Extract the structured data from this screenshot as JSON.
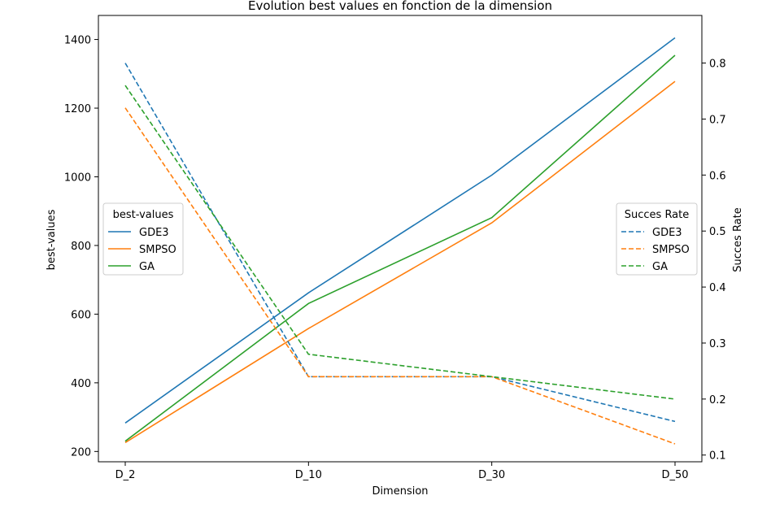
{
  "chart_data": {
    "type": "line",
    "title": "Évolution best values en fonction de la dimension",
    "xlabel": "Dimension",
    "ylabel": "best-values",
    "y2label": "Succes Rate",
    "categories": [
      "D_2",
      "D_10",
      "D_30",
      "D_50"
    ],
    "ylim": [
      170,
      1470
    ],
    "y_ticks": [
      200,
      400,
      600,
      800,
      1000,
      1200,
      1400
    ],
    "y2lim": [
      0.088,
      0.885
    ],
    "y2_ticks": [
      0.1,
      0.2,
      0.3,
      0.4,
      0.5,
      0.6,
      0.7,
      0.8
    ],
    "grid": false,
    "series": [
      {
        "name": "GDE3",
        "axis": "left",
        "style": "solid",
        "color": "#1f77b4",
        "values": [
          283,
          662,
          1005,
          1405
        ]
      },
      {
        "name": "SMPSO",
        "axis": "left",
        "style": "solid",
        "color": "#ff7f0e",
        "values": [
          226,
          558,
          866,
          1278
        ]
      },
      {
        "name": "GA",
        "axis": "left",
        "style": "solid",
        "color": "#2ca02c",
        "values": [
          230,
          631,
          881,
          1354
        ]
      },
      {
        "name": "GDE3",
        "axis": "right",
        "style": "dashed",
        "color": "#1f77b4",
        "values": [
          0.8,
          0.24,
          0.24,
          0.16
        ]
      },
      {
        "name": "SMPSO",
        "axis": "right",
        "style": "dashed",
        "color": "#ff7f0e",
        "values": [
          0.72,
          0.24,
          0.24,
          0.12
        ]
      },
      {
        "name": "GA",
        "axis": "right",
        "style": "dashed",
        "color": "#2ca02c",
        "values": [
          0.76,
          0.28,
          0.24,
          0.2
        ]
      }
    ],
    "legends": [
      {
        "title": "best-values",
        "placement": "center-left",
        "entries": [
          "GDE3",
          "SMPSO",
          "GA"
        ]
      },
      {
        "title": "Succes Rate",
        "placement": "center-right",
        "entries": [
          "GDE3",
          "SMPSO",
          "GA"
        ]
      }
    ]
  }
}
